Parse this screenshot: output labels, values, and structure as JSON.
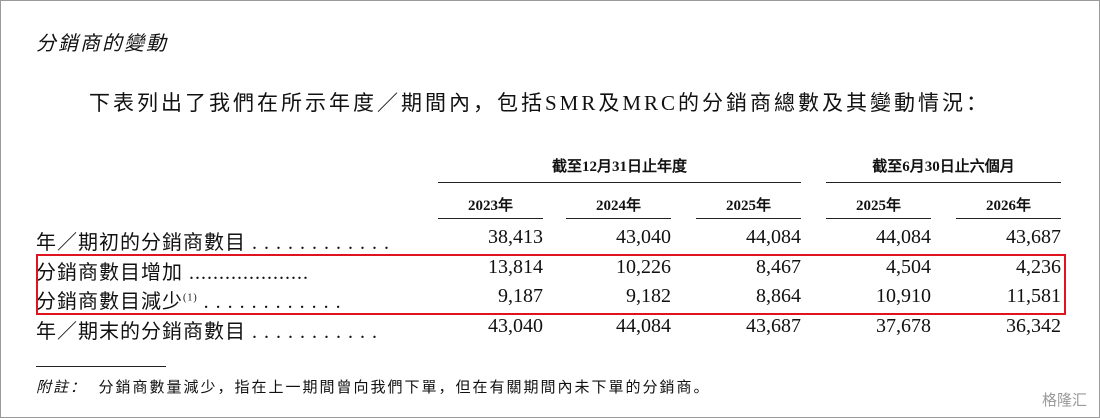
{
  "heading": "分銷商的變動",
  "intro": "下表列出了我們在所示年度／期間內，包括SMR及MRC的分銷商總數及其變動情況：",
  "table": {
    "groups": [
      "截至12月31日止年度",
      "截至6月30日止六個月"
    ],
    "columns": [
      "2023年",
      "2024年",
      "2025年",
      "2025年",
      "2026年"
    ],
    "rows": [
      {
        "label": "年／期初的分銷商數目",
        "leader": ". . . . . . . . . . . .",
        "cells": [
          "38,413",
          "43,040",
          "44,084",
          "44,084",
          "43,687"
        ]
      },
      {
        "label": "分銷商數目增加",
        "leader": "....................",
        "cells": [
          "13,814",
          "10,226",
          "8,467",
          "4,504",
          "4,236"
        ]
      },
      {
        "label": "分銷商數目減少",
        "note": "(1)",
        "leader": ". . . . . . . . . . . .",
        "cells": [
          "9,187",
          "9,182",
          "8,864",
          "10,910",
          "11,581"
        ]
      },
      {
        "label": "年／期末的分銷商數目",
        "leader": ". . . . . . . . . . .",
        "cells": [
          "43,040",
          "44,084",
          "43,687",
          "37,678",
          "36,342"
        ]
      }
    ]
  },
  "footnote": {
    "label": "附註：",
    "text": "分銷商數量減少，指在上一期間曾向我們下單，但在有關期間內未下單的分銷商。"
  },
  "watermark": "格隆汇"
}
